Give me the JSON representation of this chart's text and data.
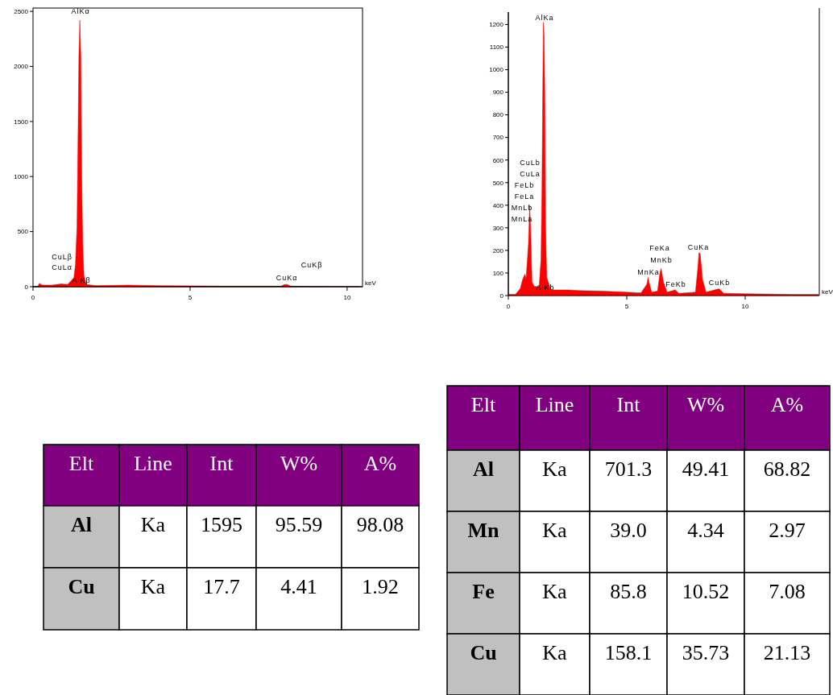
{
  "chart_data": [
    {
      "type": "area",
      "xlabel": "keV",
      "xlim": [
        0,
        10.49
      ],
      "ylim": [
        0,
        2530
      ],
      "xticks": [
        0,
        5,
        10
      ],
      "yticks": [
        0,
        500,
        1000,
        1500,
        2000,
        2500
      ],
      "grid": false,
      "series": [
        {
          "color": "#ff0000",
          "x": [
            0,
            0.15,
            0.2,
            0.3,
            0.6,
            0.9,
            1.1,
            1.2,
            1.3,
            1.35,
            1.4,
            1.43,
            1.46,
            1.49,
            1.52,
            1.55,
            1.58,
            1.62,
            1.7,
            2,
            3,
            4,
            5,
            6,
            7,
            7.9,
            8.0,
            8.1,
            8.2,
            9,
            10,
            10.4
          ],
          "values": [
            0,
            0,
            30,
            15,
            15,
            25,
            20,
            50,
            80,
            200,
            550,
            1300,
            2100,
            2420,
            2100,
            1000,
            400,
            100,
            20,
            10,
            15,
            10,
            8,
            5,
            5,
            5,
            20,
            20,
            5,
            2,
            0,
            0
          ]
        }
      ],
      "annotations": [
        "AlKα",
        "CuLβ",
        "CuLα",
        "AlKβ",
        "CuKα",
        "CuKβ"
      ]
    },
    {
      "type": "area",
      "xlabel": "keV",
      "xlim": [
        0,
        13.13
      ],
      "ylim": [
        0,
        1255
      ],
      "xticks": [
        0,
        5,
        10
      ],
      "yticks": [
        0,
        100,
        200,
        300,
        400,
        500,
        600,
        700,
        800,
        900,
        1000,
        1100,
        1200
      ],
      "grid": false,
      "series": [
        {
          "color": "#ff0000",
          "x": [
            0,
            0.3,
            0.5,
            0.6,
            0.7,
            0.75,
            0.85,
            0.9,
            0.93,
            0.97,
            1.0,
            1.1,
            1.3,
            1.38,
            1.42,
            1.45,
            1.48,
            1.51,
            1.54,
            1.57,
            1.62,
            1.8,
            2.5,
            3,
            4,
            5,
            5.6,
            5.85,
            5.9,
            5.95,
            6.05,
            6.3,
            6.4,
            6.45,
            6.55,
            6.7,
            7.05,
            7.2,
            7.9,
            8.0,
            8.05,
            8.1,
            8.2,
            8.35,
            8.9,
            9.1,
            10,
            12,
            13.1
          ],
          "values": [
            5,
            5,
            30,
            70,
            95,
            75,
            230,
            400,
            330,
            180,
            60,
            40,
            40,
            160,
            480,
            870,
            1210,
            1150,
            880,
            320,
            80,
            25,
            25,
            22,
            20,
            15,
            12,
            50,
            80,
            55,
            15,
            20,
            100,
            120,
            60,
            15,
            25,
            10,
            15,
            120,
            190,
            185,
            70,
            15,
            30,
            10,
            8,
            5,
            5
          ]
        }
      ],
      "annotations": [
        "AlKa",
        "CuLb",
        "CuLa",
        "FeLb",
        "FeLa",
        "MnLb",
        "MnLa",
        "AlKb",
        "FeKa",
        "MnKb",
        "MnKa",
        "FeKb",
        "CuKa",
        "CuKb"
      ]
    },
    {
      "type": "other",
      "categories": [
        "Elt",
        "Line",
        "Int",
        "W%",
        "A%"
      ],
      "color": "#800080",
      "annotations": [
        "Al",
        "Ka",
        "1595",
        "95.59",
        "98.08",
        "Cu",
        "Ka",
        "17.7",
        "4.41",
        "1.92"
      ]
    },
    {
      "type": "other",
      "categories": [
        "Elt",
        "Line",
        "Int",
        "W%",
        "A%"
      ],
      "color": "#800080",
      "annotations": [
        "Al",
        "Ka",
        "701.3",
        "49.41",
        "68.82",
        "Mn",
        "Ka",
        "39.0",
        "4.34",
        "2.97",
        "Fe",
        "Ka",
        "85.8",
        "10.52",
        "7.08",
        "Cu",
        "Ka",
        "158.1",
        "35.73",
        "21.13"
      ]
    }
  ]
}
